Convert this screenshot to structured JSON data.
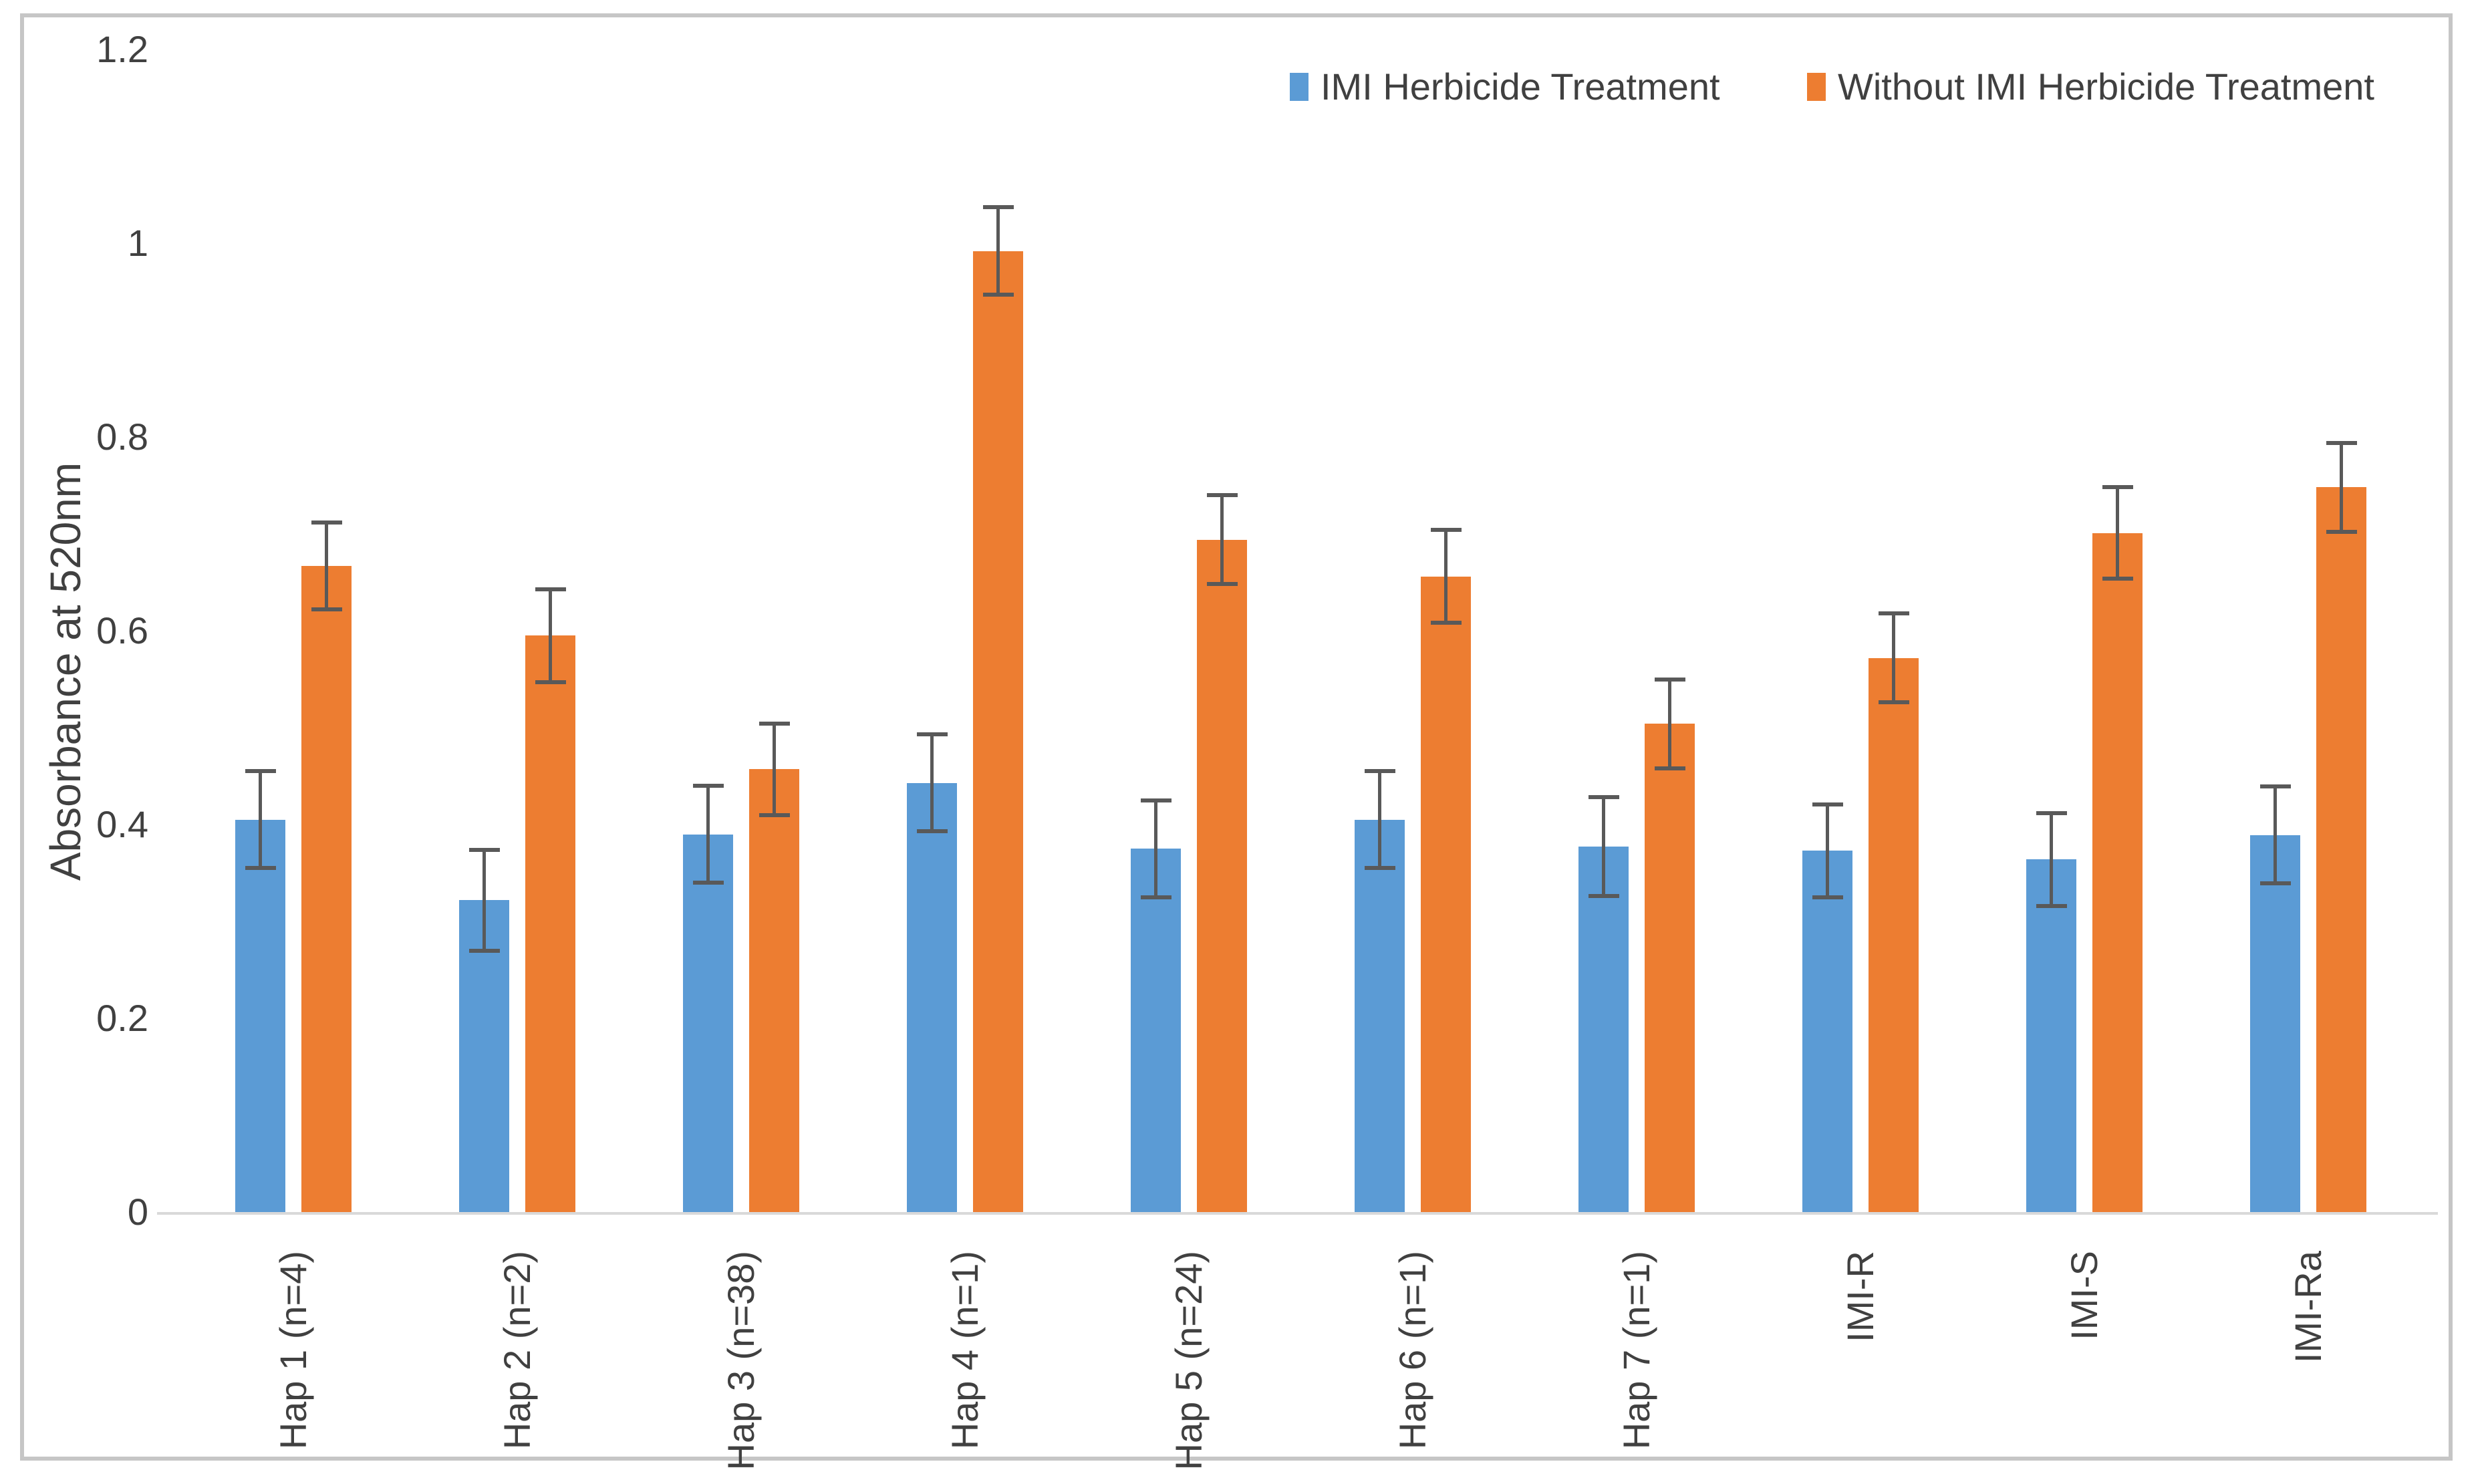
{
  "frame": {
    "border_color": "#c6c6c6",
    "background": "#ffffff"
  },
  "chart_data": {
    "type": "bar",
    "title": "",
    "xlabel": "",
    "ylabel": "Absorbance at 520nm",
    "ylim": [
      0,
      1.2
    ],
    "grid": "off",
    "legend_position": "top-right",
    "error_bars": true,
    "error_bar_color": "#595959",
    "axis_line_color": "#d9d9d9",
    "text_color": "#404040",
    "yticks": [
      {
        "label": "0",
        "value": 0
      },
      {
        "label": "0.2",
        "value": 0.2
      },
      {
        "label": "0.4",
        "value": 0.4
      },
      {
        "label": "0.6",
        "value": 0.6
      },
      {
        "label": "0.8",
        "value": 0.8
      },
      {
        "label": "1",
        "value": 1
      },
      {
        "label": "1.2",
        "value": 1.2
      }
    ],
    "categories": [
      "Hap 1 (n=4)",
      "Hap 2 (n=2)",
      "Hap 3 (n=38)",
      "Hap 4 (n=1)",
      "Hap 5 (n=24)",
      "Hap 6 (n=1)",
      "Hap 7 (n=1)",
      "IMI-R",
      "IMI-S",
      "IMI-Ra"
    ],
    "series": [
      {
        "name": "IMI Herbicide Treatment",
        "color": "#5b9bd5",
        "values": [
          0.405,
          0.322,
          0.39,
          0.443,
          0.375,
          0.405,
          0.377,
          0.373,
          0.364,
          0.389
        ],
        "errors": [
          0.05,
          0.052,
          0.05,
          0.05,
          0.05,
          0.05,
          0.051,
          0.048,
          0.048,
          0.05
        ]
      },
      {
        "name": "Without IMI Herbicide Treatment",
        "color": "#ed7d31",
        "values": [
          0.667,
          0.595,
          0.457,
          0.992,
          0.694,
          0.656,
          0.504,
          0.572,
          0.701,
          0.748
        ],
        "errors": [
          0.045,
          0.048,
          0.047,
          0.045,
          0.046,
          0.048,
          0.046,
          0.046,
          0.047,
          0.046
        ]
      }
    ]
  }
}
